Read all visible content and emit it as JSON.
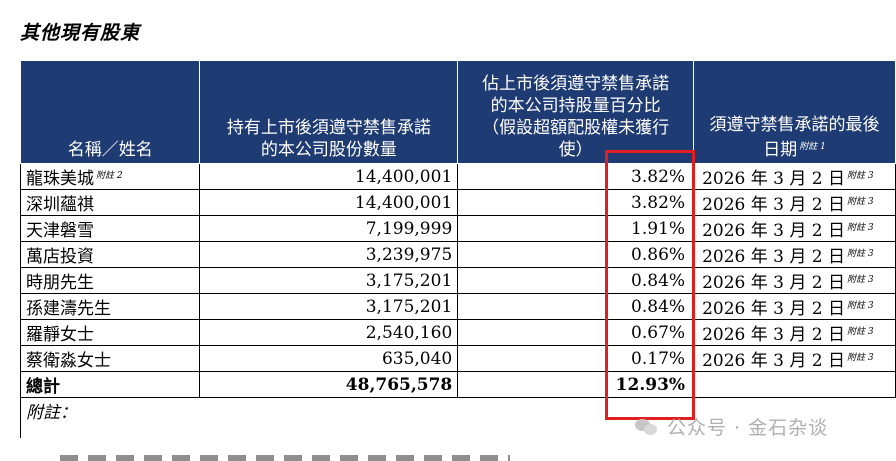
{
  "title": "其他現有股東",
  "headers": {
    "name": "名稱／姓名",
    "shares": "持有上市後須遵守禁售承諾的本公司股份數量",
    "percent": "佔上市後須遵守禁售承諾的本公司持股量百分比（假設超額配股權未獲行使）",
    "deadline": "須遵守禁售承諾的最後日期",
    "deadline_note": "附註 1"
  },
  "rows": [
    {
      "name": "龍珠美城",
      "name_note": "附註 2",
      "shares": "14,400,001",
      "percent": "3.82%",
      "date": "2026 年 3 月 2 日",
      "date_note": "附註 3"
    },
    {
      "name": "深圳蘊祺",
      "name_note": "",
      "shares": "14,400,001",
      "percent": "3.82%",
      "date": "2026 年 3 月 2 日",
      "date_note": "附註 3"
    },
    {
      "name": "天津磐雪",
      "name_note": "",
      "shares": "7,199,999",
      "percent": "1.91%",
      "date": "2026 年 3 月 2 日",
      "date_note": "附註 3"
    },
    {
      "name": "萬店投資",
      "name_note": "",
      "shares": "3,239,975",
      "percent": "0.86%",
      "date": "2026 年 3 月 2 日",
      "date_note": "附註 3"
    },
    {
      "name": "時朋先生",
      "name_note": "",
      "shares": "3,175,201",
      "percent": "0.84%",
      "date": "2026 年 3 月 2 日",
      "date_note": "附註 3"
    },
    {
      "name": "孫建濤先生",
      "name_note": "",
      "shares": "3,175,201",
      "percent": "0.84%",
      "date": "2026 年 3 月 2 日",
      "date_note": "附註 3"
    },
    {
      "name": "羅靜女士",
      "name_note": "",
      "shares": "2,540,160",
      "percent": "0.67%",
      "date": "2026 年 3 月 2 日",
      "date_note": "附註 3"
    },
    {
      "name": "蔡衛淼女士",
      "name_note": "",
      "shares": "635,040",
      "percent": "0.17%",
      "date": "2026 年 3 月 2 日",
      "date_note": "附註 3"
    }
  ],
  "total": {
    "label": "總計",
    "shares": "48,765,578",
    "percent": "12.93%"
  },
  "notes_label": "附註：",
  "watermark": "公众号 · 金石杂谈",
  "colors": {
    "header_bg": "#1f3b73",
    "highlight": "#e02020"
  }
}
